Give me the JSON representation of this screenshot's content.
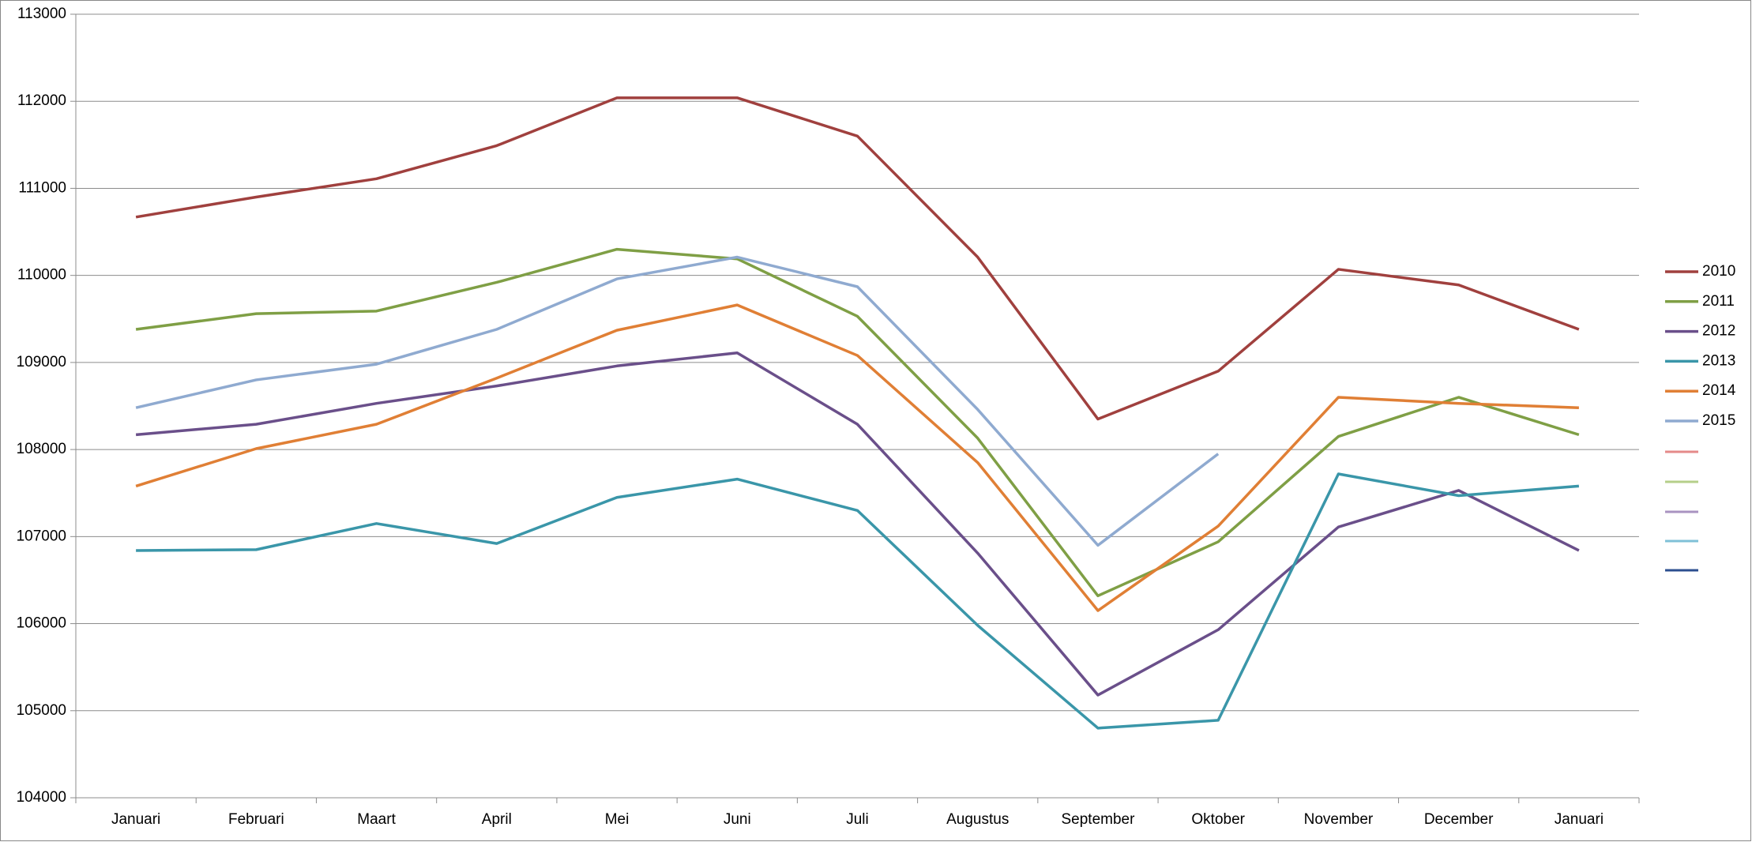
{
  "chart_data": {
    "type": "line",
    "categories": [
      "Januari",
      "Februari",
      "Maart",
      "April",
      "Mei",
      "Juni",
      "Juli",
      "Augustus",
      "September",
      "Oktober",
      "November",
      "December",
      "Januari"
    ],
    "ylim": [
      104000,
      113000
    ],
    "yticks": [
      104000,
      105000,
      106000,
      107000,
      108000,
      109000,
      110000,
      111000,
      112000,
      113000
    ],
    "grid": true,
    "legend": "right",
    "series": [
      {
        "name": "2010",
        "color": "#a0403e",
        "values": [
          110670,
          110900,
          111110,
          111490,
          112040,
          112040,
          111600,
          110210,
          108350,
          108900,
          110070,
          109890,
          109380
        ]
      },
      {
        "name": "2011",
        "color": "#7f9f45",
        "values": [
          109380,
          109560,
          109590,
          109920,
          110300,
          110190,
          109530,
          108130,
          106320,
          106940,
          108150,
          108600,
          108170
        ]
      },
      {
        "name": "2012",
        "color": "#6a4f8a",
        "values": [
          108170,
          108290,
          108530,
          108730,
          108960,
          109110,
          108290,
          106810,
          105180,
          105930,
          107110,
          107530,
          106840
        ]
      },
      {
        "name": "2013",
        "color": "#3a96a9",
        "values": [
          106840,
          106850,
          107150,
          106920,
          107450,
          107660,
          107300,
          105980,
          104800,
          104890,
          107720,
          107470,
          107580
        ]
      },
      {
        "name": "2014",
        "color": "#e07f35",
        "values": [
          107580,
          108010,
          108290,
          108820,
          109370,
          109660,
          109080,
          107850,
          106150,
          107120,
          108600,
          108530,
          108480
        ]
      },
      {
        "name": "2015",
        "color": "#8faad0",
        "values": [
          108480,
          108800,
          108980,
          109380,
          109960,
          110210,
          109870,
          108460,
          106900,
          107950,
          null,
          null,
          null
        ]
      }
    ]
  }
}
